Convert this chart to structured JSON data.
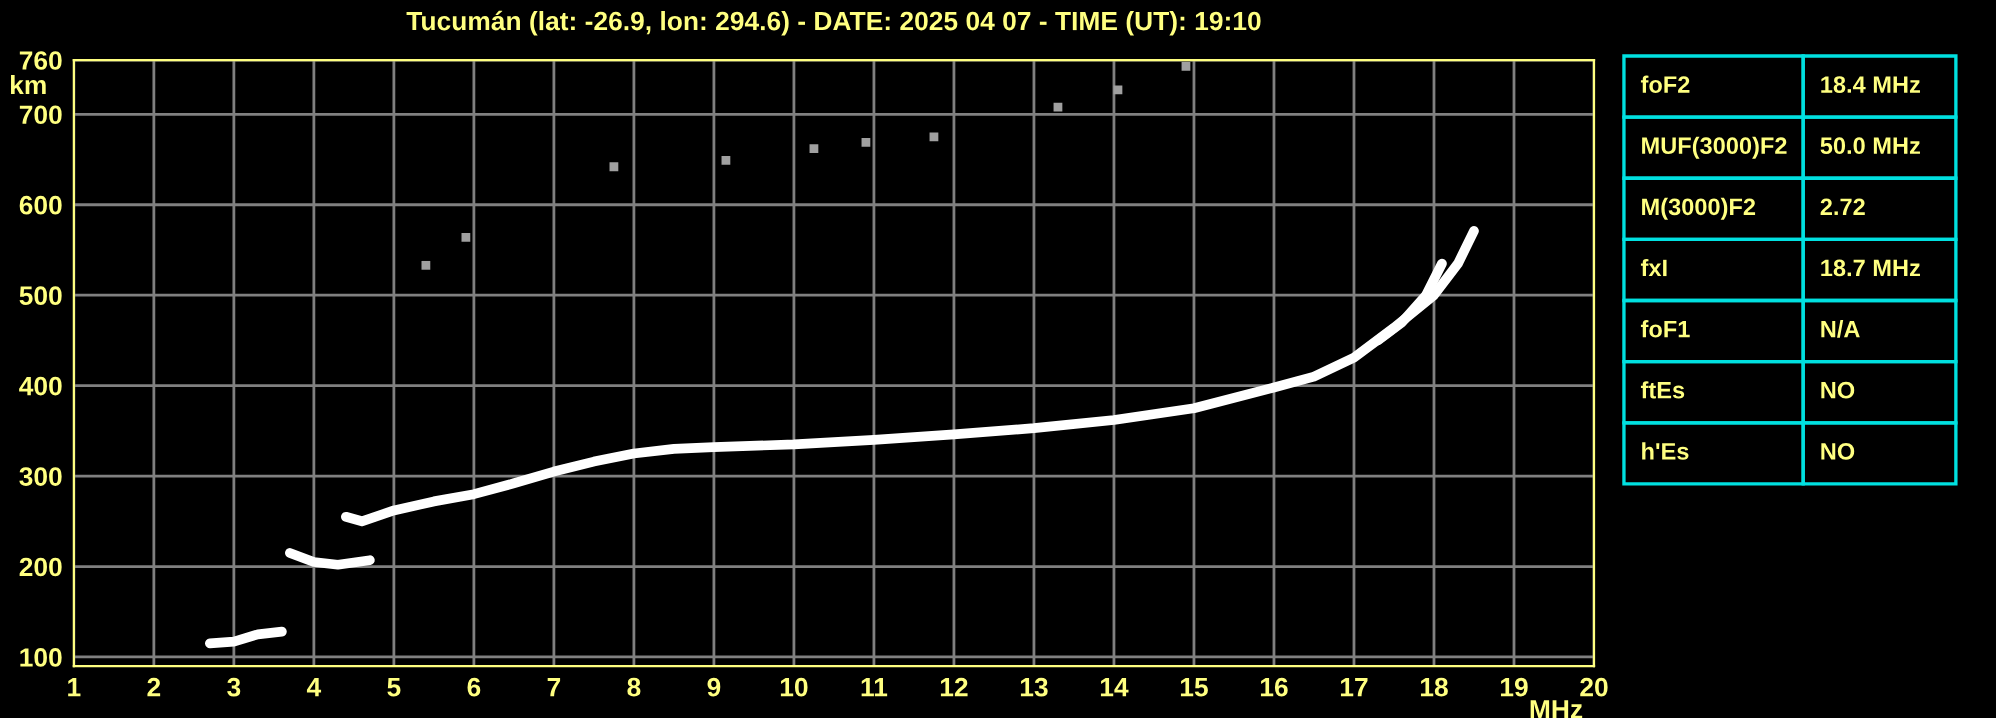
{
  "chart_data": [
    {
      "type": "line",
      "title": "Tucumán (lat: -26.9, lon: 294.6) - DATE: 2025 04 07 - TIME (UT): 19:10",
      "xlabel": "MHz",
      "ylabel": "km",
      "xlim": [
        1,
        20
      ],
      "xticks": [
        1,
        2,
        3,
        4,
        5,
        6,
        7,
        8,
        9,
        10,
        11,
        12,
        13,
        14,
        15,
        16,
        17,
        18,
        19,
        20
      ],
      "ylim": [
        90,
        760
      ],
      "yticks": [
        100,
        200,
        300,
        400,
        500,
        600,
        700,
        760
      ],
      "grid": true,
      "legend": false,
      "series": [
        {
          "type": "line",
          "color": "#ffffff",
          "x": [
            4.4,
            4.6,
            5,
            5.5,
            6,
            6.5,
            7,
            7.5,
            8,
            8.5,
            9,
            10,
            11,
            12,
            13,
            14,
            15,
            16,
            16.5,
            17,
            17.5,
            18,
            18.3,
            18.5
          ],
          "values": [
            255,
            250,
            262,
            272,
            280,
            292,
            305,
            316,
            325,
            330,
            332,
            335,
            340,
            346,
            353,
            362,
            375,
            398,
            410,
            431,
            464,
            500,
            535,
            571
          ]
        },
        {
          "type": "line",
          "color": "#ffffff",
          "x": [
            17.3,
            17.6,
            17.9,
            18.1
          ],
          "values": [
            450,
            470,
            500,
            535
          ]
        },
        {
          "type": "line",
          "color": "#ffffff",
          "x": [
            2.7,
            3,
            3.3,
            3.6
          ],
          "values": [
            115,
            117,
            125,
            128
          ]
        },
        {
          "type": "line",
          "color": "#ffffff",
          "x": [
            3.7,
            4,
            4.3,
            4.7
          ],
          "values": [
            215,
            205,
            202,
            207
          ]
        },
        {
          "type": "scatter",
          "marker": "square",
          "color": "#a0a0a0",
          "x": [
            5.4,
            5.9,
            7.75,
            9.15,
            10.25,
            10.9,
            11.75,
            13.3,
            14.05,
            14.9
          ],
          "values": [
            533,
            564,
            642,
            649,
            662,
            669,
            675,
            708,
            727,
            753
          ]
        }
      ]
    },
    {
      "type": "other",
      "annotations": [
        "foF2",
        "18.4 MHz",
        "MUF(3000)F2",
        "50.0 MHz",
        "M(3000)F2",
        "2.72",
        "fxI",
        "18.7 MHz",
        "foF1",
        "N/A",
        "ftEs",
        "NO",
        "h'Es",
        "NO"
      ]
    }
  ]
}
